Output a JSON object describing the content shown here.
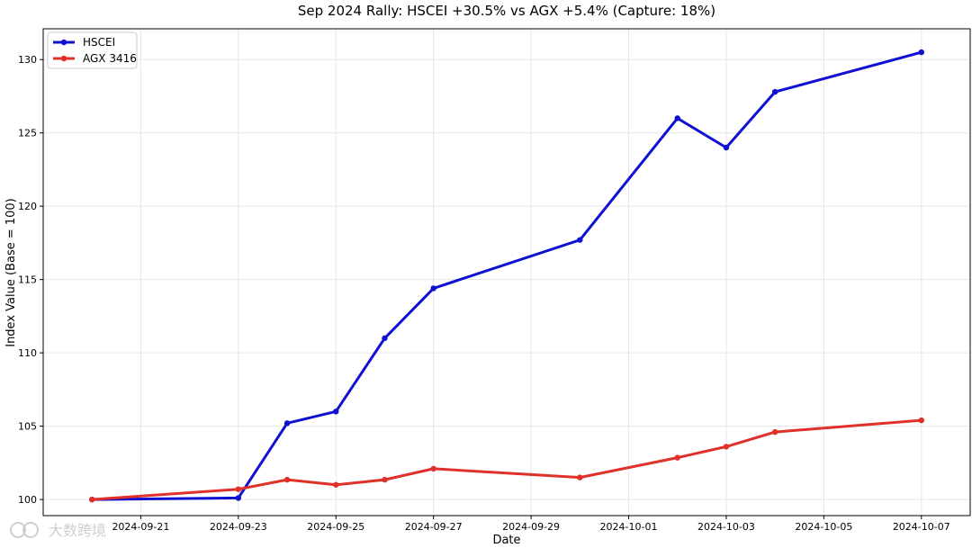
{
  "chart_data": {
    "type": "line",
    "title": "Sep 2024 Rally: HSCEI +30.5% vs AGX +5.4% (Capture: 18%)",
    "xlabel": "Date",
    "ylabel": "Index Value (Base = 100)",
    "xlim": [
      "2024-09-19",
      "2024-10-08"
    ],
    "ylim": [
      98.9,
      132.1
    ],
    "grid": true,
    "legend": "top-left",
    "x_ticks": [
      "2024-09-21",
      "2024-09-23",
      "2024-09-25",
      "2024-09-27",
      "2024-09-29",
      "2024-10-01",
      "2024-10-03",
      "2024-10-05",
      "2024-10-07"
    ],
    "y_ticks": [
      100,
      105,
      110,
      115,
      120,
      125,
      130
    ],
    "series": [
      {
        "name": "HSCEI",
        "color": "#1010d0",
        "x": [
          "2024-09-20",
          "2024-09-23",
          "2024-09-24",
          "2024-09-25",
          "2024-09-26",
          "2024-09-27",
          "2024-09-30",
          "2024-10-02",
          "2024-10-03",
          "2024-10-04",
          "2024-10-07"
        ],
        "values": [
          100.0,
          100.1,
          105.2,
          106.0,
          111.0,
          114.4,
          117.7,
          126.0,
          124.0,
          127.8,
          130.5
        ]
      },
      {
        "name": "AGX 3416",
        "color": "#e0302a",
        "x": [
          "2024-09-20",
          "2024-09-23",
          "2024-09-24",
          "2024-09-25",
          "2024-09-26",
          "2024-09-27",
          "2024-09-30",
          "2024-10-02",
          "2024-10-03",
          "2024-10-04",
          "2024-10-07"
        ],
        "values": [
          100.0,
          100.7,
          101.35,
          101.0,
          101.35,
          102.1,
          101.5,
          102.85,
          103.6,
          104.6,
          105.4
        ]
      }
    ]
  },
  "watermark": {
    "text": "大数跨境",
    "icon": "watermark-logo-icon"
  }
}
